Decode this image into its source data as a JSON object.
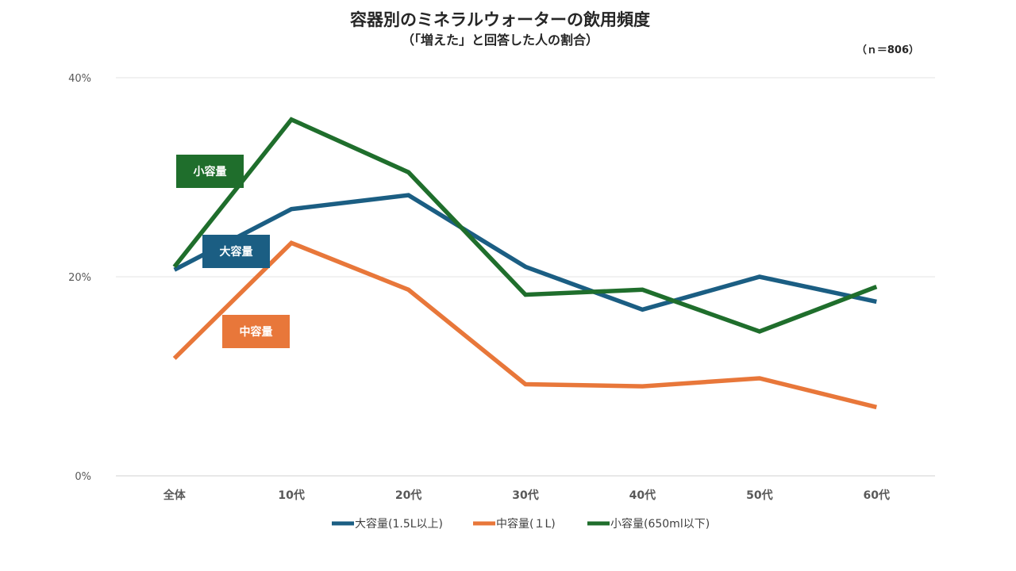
{
  "chart_data": {
    "type": "line",
    "title": "容器別のミネラルウォーターの飲用頻度",
    "subtitle": "（「増えた」と回答した人の割合）",
    "sample_note": "（ｎ＝806）",
    "categories": [
      "全体",
      "10代",
      "20代",
      "30代",
      "40代",
      "50代",
      "60代"
    ],
    "ylim": [
      0,
      40
    ],
    "yticks": [
      0,
      20,
      40
    ],
    "ytick_labels": [
      "0%",
      "20%",
      "40%"
    ],
    "grid": true,
    "legend_position": "bottom",
    "series": [
      {
        "name": "大容量(1.5L以上)",
        "callout": "大容量",
        "color": "#1b5e83",
        "values": [
          20.7,
          26.8,
          28.2,
          21.0,
          16.7,
          20.0,
          17.5
        ]
      },
      {
        "name": "中容量(１L)",
        "callout": "中容量",
        "color": "#e8773a",
        "values": [
          11.8,
          23.4,
          18.7,
          9.2,
          9.0,
          9.8,
          6.9
        ]
      },
      {
        "name": "小容量(650ml以下)",
        "callout": "小容量",
        "color": "#1f6e2c",
        "values": [
          21.0,
          35.8,
          30.5,
          18.2,
          18.7,
          14.5,
          19.0
        ]
      }
    ]
  }
}
